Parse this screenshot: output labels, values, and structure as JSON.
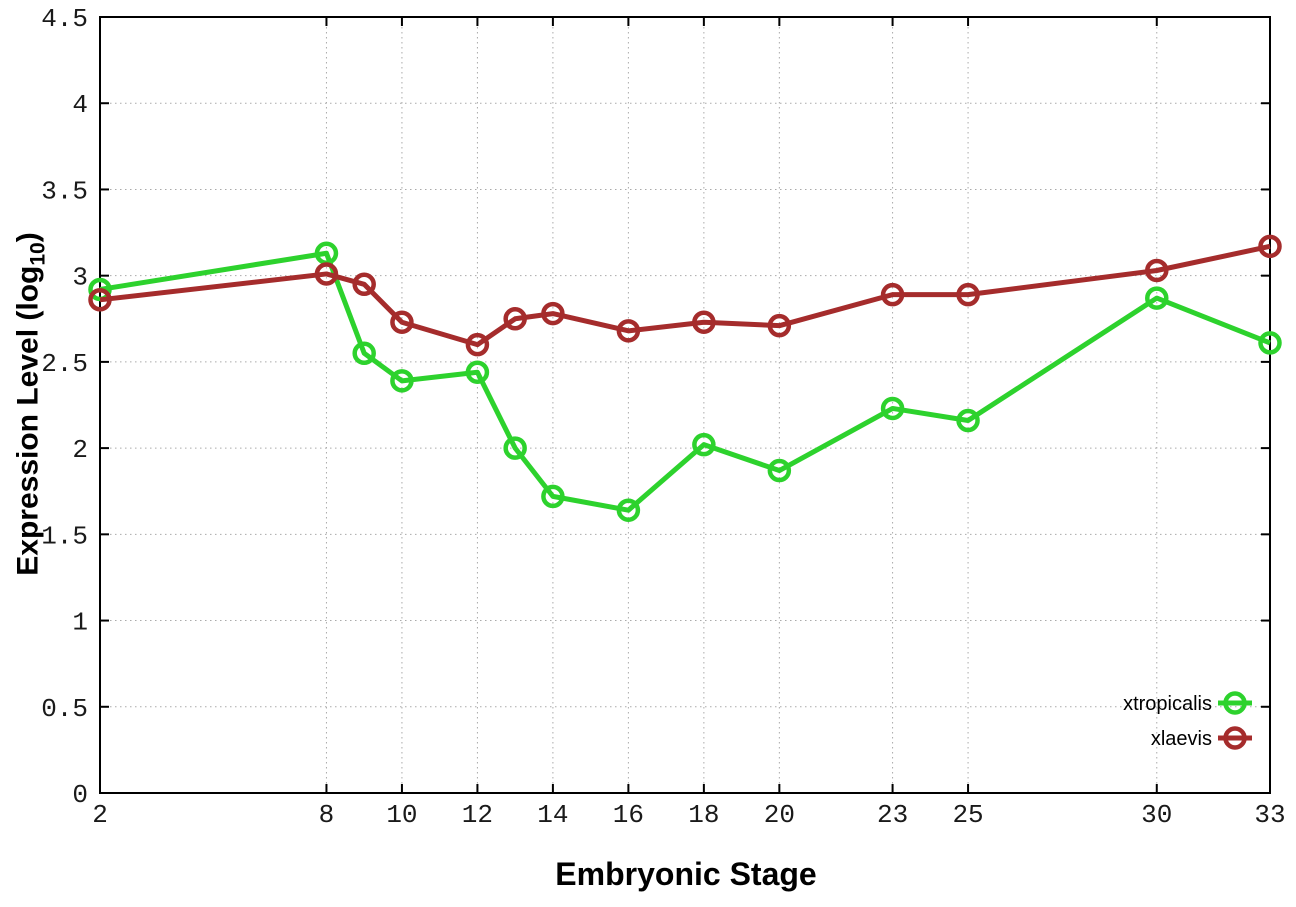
{
  "chart_data": {
    "type": "line",
    "title": "",
    "xlabel": "Embryonic Stage",
    "ylabel": "Expression Level (log10)",
    "ylabel_parts": {
      "prefix": "Expression Level (log",
      "sub": "10",
      "suffix": ")"
    },
    "xlim": [
      2,
      33
    ],
    "ylim": [
      0,
      4.5
    ],
    "grid": true,
    "legend_position": "bottom-right",
    "x": [
      2,
      8,
      9,
      10,
      12,
      13,
      14,
      16,
      18,
      20,
      23,
      25,
      30,
      33
    ],
    "xtick_labels": [
      "2",
      "8",
      "10",
      "12",
      "14",
      "16",
      "18",
      "20",
      "23",
      "25",
      "30",
      "33"
    ],
    "xtick_values": [
      2,
      8,
      10,
      12,
      14,
      16,
      18,
      20,
      23,
      25,
      30,
      33
    ],
    "ytick_labels": [
      "0",
      "0.5",
      "1",
      "1.5",
      "2",
      "2.5",
      "3",
      "3.5",
      "4",
      "4.5"
    ],
    "ytick_values": [
      0,
      0.5,
      1,
      1.5,
      2,
      2.5,
      3,
      3.5,
      4,
      4.5
    ],
    "series": [
      {
        "name": "xtropicalis",
        "color": "#2dd22d",
        "marker": "open-circle",
        "values": [
          2.92,
          3.13,
          2.55,
          2.39,
          2.44,
          2.0,
          1.72,
          1.64,
          2.02,
          1.87,
          2.23,
          2.16,
          2.87,
          2.61
        ]
      },
      {
        "name": "xlaevis",
        "color": "#a52c2c",
        "marker": "open-circle",
        "values": [
          2.86,
          3.01,
          2.95,
          2.73,
          2.6,
          2.75,
          2.78,
          2.68,
          2.73,
          2.71,
          2.89,
          2.89,
          3.03,
          3.17
        ]
      }
    ],
    "colors": {
      "grid": "#aaaaaa",
      "axis": "#000000",
      "tick_text": "#1a1a1a"
    }
  }
}
